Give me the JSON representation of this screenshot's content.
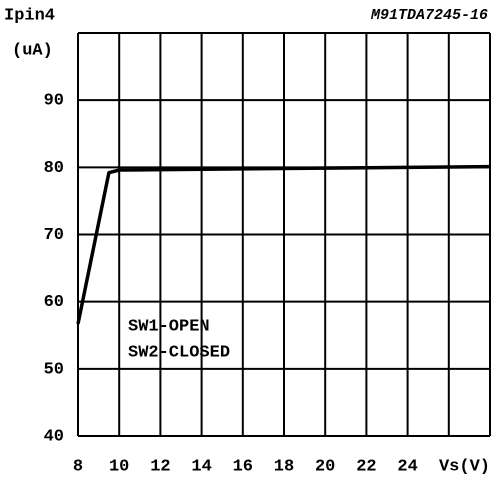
{
  "chart_data": {
    "type": "line",
    "title": "M91TDA7245-16",
    "y_label": "Ipin4",
    "y_unit": "(uA)",
    "x_label": "Vs(V)",
    "annotations": [
      "SW1-OPEN",
      "SW2-CLOSED"
    ],
    "x": [
      8,
      9.5,
      10,
      28
    ],
    "series": [
      {
        "name": "Ipin4",
        "color": "#000000",
        "values": [
          56.7,
          79.2,
          79.6,
          80.1
        ]
      }
    ],
    "xlim": [
      8,
      28
    ],
    "ylim": [
      40,
      100
    ],
    "xticks": [
      8,
      10,
      12,
      14,
      16,
      18,
      20,
      22,
      24
    ],
    "yticks": [
      40,
      50,
      60,
      70,
      80,
      90
    ],
    "grid_x": [
      8,
      10,
      12,
      14,
      16,
      18,
      20,
      22,
      24,
      26,
      28
    ],
    "grid_y": [
      40,
      50,
      60,
      70,
      80,
      90,
      100
    ],
    "grid": true
  }
}
